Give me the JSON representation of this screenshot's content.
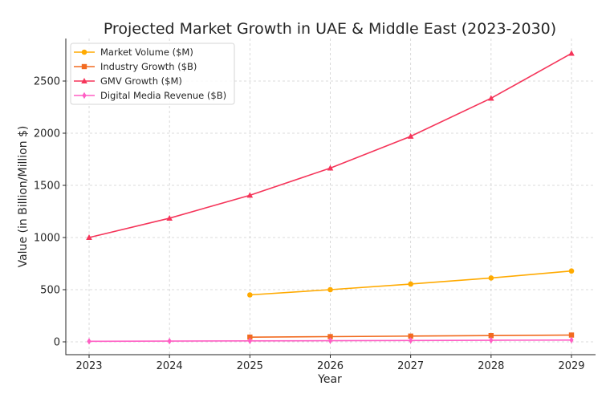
{
  "chart_data": {
    "type": "line",
    "title": "Projected Market Growth in UAE & Middle East (2023-2030)",
    "xlabel": "Year",
    "ylabel": "Value (in Billion/Million $)",
    "x": [
      2023,
      2024,
      2025,
      2026,
      2027,
      2028,
      2029
    ],
    "xticks": [
      "2023",
      "2024",
      "2025",
      "2026",
      "2027",
      "2028",
      "2029"
    ],
    "yticks": [
      "0",
      "500",
      "1000",
      "1500",
      "2000",
      "2500"
    ],
    "ylim": [
      -120,
      2900
    ],
    "grid": true,
    "legend": "top-left",
    "series": [
      {
        "name": "Market Volume ($M)",
        "color": "#ffaa00",
        "marker": "circle",
        "values": [
          null,
          null,
          450,
          500,
          554,
          612,
          679
        ]
      },
      {
        "name": "Industry Growth ($B)",
        "color": "#f26b21",
        "marker": "square",
        "values": [
          null,
          null,
          45,
          50,
          55,
          60,
          65
        ]
      },
      {
        "name": "GMV Growth ($M)",
        "color": "#f5355a",
        "marker": "triangle",
        "values": [
          1000,
          1185,
          1405,
          1665,
          1970,
          2335,
          2765
        ]
      },
      {
        "name": "Digital Media Revenue ($B)",
        "color": "#ff5ec4",
        "marker": "diamond",
        "values": [
          5,
          7,
          9,
          11,
          13,
          15,
          17
        ]
      }
    ]
  }
}
